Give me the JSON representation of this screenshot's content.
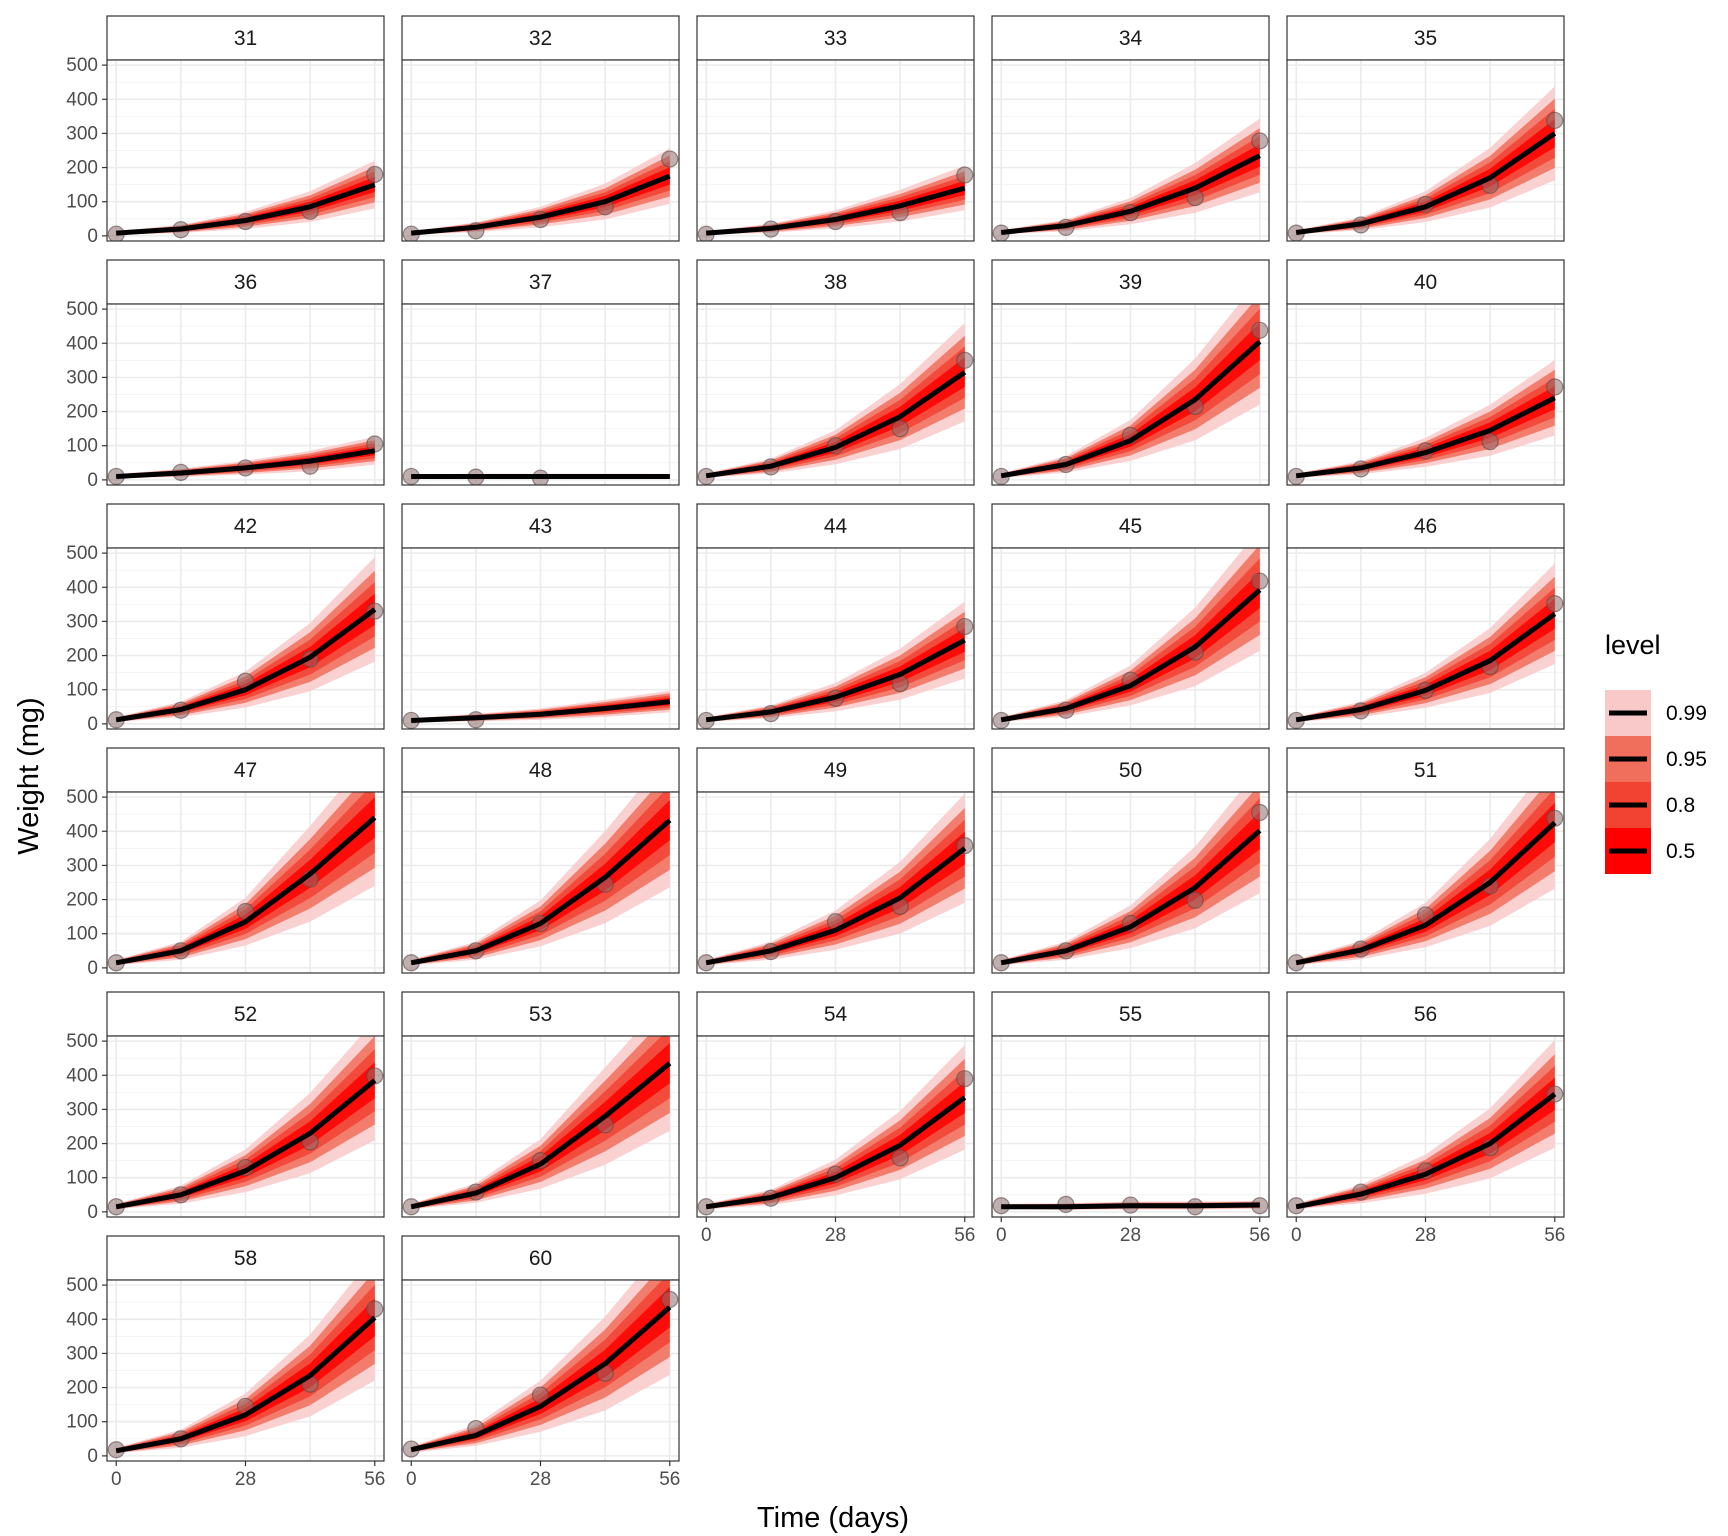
{
  "chart_data": {
    "type": "line",
    "facet_layout": "wrap-5-columns",
    "xlabel": "Time (days)",
    "ylabel": "Weight (mg)",
    "xlim": [
      -2,
      58
    ],
    "ylim": [
      -15,
      515
    ],
    "x_ticks": [
      0,
      28,
      56
    ],
    "x_ticks_minor": [
      14,
      42
    ],
    "y_ticks": [
      0,
      100,
      200,
      300,
      400,
      500
    ],
    "grid": true,
    "x": [
      0,
      14,
      28,
      42,
      56
    ],
    "legend": {
      "title": "level",
      "placement": "right",
      "entries": [
        "0.99",
        "0.95",
        "0.8",
        "0.5"
      ]
    },
    "colors": {
      "band_99": "#f9c9c9",
      "band_95": "#f06e5c",
      "band_80": "#f24232",
      "band_50": "#ff0000",
      "median_line": "#000000",
      "observed_point": "#8c6e6e",
      "strip_fill": "#ffffff",
      "panel_border": "#333333",
      "grid_line": "#ebebeb"
    },
    "panels": [
      {
        "id": "31",
        "observed": [
          5,
          18,
          42,
          72,
          180
        ],
        "median": [
          8,
          20,
          45,
          85,
          150
        ]
      },
      {
        "id": "32",
        "observed": [
          5,
          15,
          48,
          85,
          225
        ],
        "median": [
          8,
          25,
          55,
          100,
          175
        ]
      },
      {
        "id": "33",
        "observed": [
          5,
          20,
          42,
          68,
          178
        ],
        "median": [
          8,
          22,
          48,
          88,
          140
        ]
      },
      {
        "id": "34",
        "observed": [
          8,
          25,
          68,
          112,
          278
        ],
        "median": [
          10,
          30,
          72,
          140,
          235
        ]
      },
      {
        "id": "35",
        "observed": [
          8,
          32,
          92,
          148,
          338
        ],
        "median": [
          10,
          35,
          85,
          170,
          300
        ]
      },
      {
        "id": "36",
        "observed": [
          10,
          22,
          35,
          40,
          105
        ],
        "median": [
          10,
          20,
          35,
          55,
          85
        ]
      },
      {
        "id": "37",
        "observed": [
          10,
          8,
          5,
          null,
          null
        ],
        "median": [
          10,
          10,
          10,
          10,
          10
        ]
      },
      {
        "id": "38",
        "observed": [
          10,
          38,
          100,
          150,
          350
        ],
        "median": [
          12,
          40,
          95,
          185,
          315
        ]
      },
      {
        "id": "39",
        "observed": [
          10,
          45,
          130,
          215,
          438
        ],
        "median": [
          12,
          45,
          115,
          235,
          405
        ]
      },
      {
        "id": "40",
        "observed": [
          10,
          32,
          85,
          112,
          272
        ],
        "median": [
          12,
          35,
          80,
          145,
          240
        ]
      },
      {
        "id": "42",
        "observed": [
          12,
          40,
          125,
          190,
          330
        ],
        "median": [
          12,
          42,
          100,
          195,
          335
        ]
      },
      {
        "id": "43",
        "observed": [
          10,
          12,
          null,
          null,
          null
        ],
        "median": [
          10,
          18,
          28,
          45,
          65
        ]
      },
      {
        "id": "44",
        "observed": [
          10,
          30,
          75,
          118,
          285
        ],
        "median": [
          12,
          35,
          78,
          145,
          245
        ]
      },
      {
        "id": "45",
        "observed": [
          10,
          40,
          128,
          210,
          418
        ],
        "median": [
          12,
          45,
          112,
          225,
          392
        ]
      },
      {
        "id": "46",
        "observed": [
          10,
          38,
          98,
          168,
          352
        ],
        "median": [
          12,
          42,
          98,
          185,
          322
        ]
      },
      {
        "id": "47",
        "observed": [
          15,
          50,
          165,
          260,
          null
        ],
        "median": [
          15,
          50,
          135,
          275,
          440
        ]
      },
      {
        "id": "48",
        "observed": [
          15,
          50,
          130,
          245,
          null
        ],
        "median": [
          15,
          50,
          130,
          265,
          432
        ]
      },
      {
        "id": "49",
        "observed": [
          15,
          48,
          135,
          180,
          358
        ],
        "median": [
          15,
          50,
          110,
          205,
          350
        ]
      },
      {
        "id": "50",
        "observed": [
          15,
          50,
          130,
          198,
          455
        ],
        "median": [
          15,
          50,
          120,
          235,
          402
        ]
      },
      {
        "id": "51",
        "observed": [
          15,
          55,
          155,
          240,
          438
        ],
        "median": [
          15,
          52,
          125,
          250,
          425
        ]
      },
      {
        "id": "52",
        "observed": [
          15,
          50,
          130,
          205,
          398
        ],
        "median": [
          15,
          50,
          120,
          230,
          385
        ]
      },
      {
        "id": "53",
        "observed": [
          15,
          58,
          150,
          255,
          null
        ],
        "median": [
          15,
          55,
          140,
          280,
          435
        ]
      },
      {
        "id": "54",
        "observed": [
          15,
          40,
          110,
          158,
          390
        ],
        "median": [
          15,
          42,
          100,
          195,
          335
        ]
      },
      {
        "id": "55",
        "observed": [
          18,
          22,
          20,
          15,
          18
        ],
        "median": [
          15,
          15,
          18,
          18,
          20
        ]
      },
      {
        "id": "56",
        "observed": [
          18,
          58,
          120,
          188,
          345
        ],
        "median": [
          15,
          52,
          110,
          200,
          345
        ]
      },
      {
        "id": "58",
        "observed": [
          18,
          50,
          145,
          210,
          430
        ],
        "median": [
          15,
          50,
          120,
          235,
          405
        ]
      },
      {
        "id": "60",
        "observed": [
          20,
          80,
          178,
          242,
          458
        ],
        "median": [
          18,
          60,
          145,
          270,
          435
        ]
      }
    ]
  }
}
